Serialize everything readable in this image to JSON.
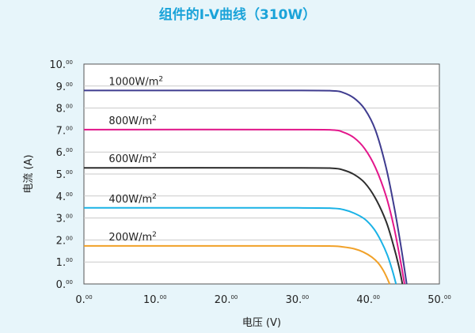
{
  "chart_data": {
    "type": "line",
    "title": "组件的I-V曲线（310W）",
    "xlabel": "电压 (V)",
    "ylabel": "电流 (A)",
    "xlim": [
      0,
      50
    ],
    "ylim": [
      0,
      10
    ],
    "x_tick_labels": [
      "0.",
      "10.",
      "20.",
      "30.",
      "40.",
      "50."
    ],
    "x_tick_values": [
      0,
      10,
      20,
      30,
      40,
      50
    ],
    "y_tick_labels": [
      "0.",
      "1.",
      "2.",
      "3.",
      "4.",
      "5.",
      "6.",
      "7.",
      "8.",
      "9.",
      "10."
    ],
    "y_tick_values": [
      0,
      1,
      2,
      3,
      4,
      5,
      6,
      7,
      8,
      9,
      10
    ],
    "tick_superscript": "00",
    "grid": true,
    "series": [
      {
        "name": "1000W/m²",
        "label_base": "1000W/m",
        "label_sup": "2",
        "color": "#3f3c8f",
        "x": [
          0,
          30,
          35,
          36.5,
          38,
          39.5,
          41,
          42.5,
          43.7,
          44.7,
          45.4
        ],
        "y": [
          8.8,
          8.8,
          8.78,
          8.7,
          8.45,
          7.95,
          7.0,
          5.3,
          3.4,
          1.5,
          0
        ]
      },
      {
        "name": "800W/m²",
        "label_base": "800W/m",
        "label_sup": "2",
        "color": "#e3168b",
        "x": [
          0,
          30,
          35,
          36.5,
          38,
          39.5,
          41,
          42.5,
          43.6,
          44.5,
          45.1
        ],
        "y": [
          7.02,
          7.02,
          7.0,
          6.9,
          6.65,
          6.15,
          5.3,
          4.0,
          2.6,
          1.1,
          0
        ]
      },
      {
        "name": "600W/m²",
        "label_base": "600W/m",
        "label_sup": "2",
        "color": "#2d2d2d",
        "x": [
          0,
          30,
          35,
          36.5,
          38,
          39.5,
          41,
          42.5,
          43.5,
          44.3,
          44.8
        ],
        "y": [
          5.28,
          5.28,
          5.26,
          5.18,
          4.98,
          4.6,
          3.9,
          2.85,
          1.8,
          0.8,
          0
        ]
      },
      {
        "name": "400W/m²",
        "label_base": "400W/m",
        "label_sup": "2",
        "color": "#1ab2e6",
        "x": [
          0,
          30,
          35,
          36.5,
          38,
          39.5,
          40.8,
          41.8,
          42.7,
          43.4,
          43.9
        ],
        "y": [
          3.46,
          3.46,
          3.44,
          3.38,
          3.22,
          2.95,
          2.5,
          1.95,
          1.3,
          0.6,
          0
        ]
      },
      {
        "name": "200W/m²",
        "label_base": "200W/m",
        "label_sup": "2",
        "color": "#f1a128",
        "x": [
          0,
          30,
          35,
          36.5,
          38,
          39.3,
          40.5,
          41.4,
          42.1,
          42.6,
          43.0
        ],
        "y": [
          1.73,
          1.73,
          1.72,
          1.68,
          1.6,
          1.45,
          1.22,
          0.95,
          0.62,
          0.3,
          0
        ]
      }
    ]
  }
}
